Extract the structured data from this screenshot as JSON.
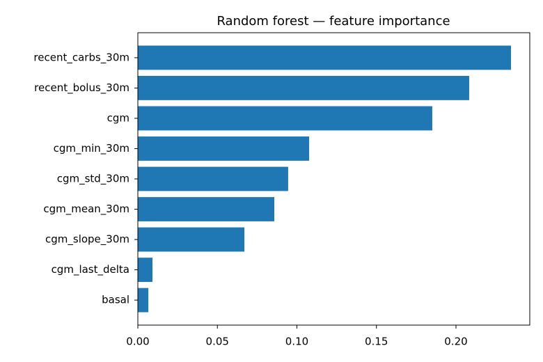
{
  "chart_data": {
    "type": "barh",
    "title": "Random forest — feature importance",
    "categories": [
      "recent_carbs_30m",
      "recent_bolus_30m",
      "cgm",
      "cgm_min_30m",
      "cgm_std_30m",
      "cgm_mean_30m",
      "cgm_slope_30m",
      "cgm_last_delta",
      "basal"
    ],
    "values": [
      0.2346,
      0.2083,
      0.1851,
      0.1077,
      0.0945,
      0.0858,
      0.067,
      0.0092,
      0.0066
    ],
    "color": "#1f77b4",
    "xlim": [
      0,
      0.2464
    ],
    "xticks": [
      {
        "value": 0,
        "label": "0.00"
      },
      {
        "value": 0.05,
        "label": "0.05"
      },
      {
        "value": 0.1,
        "label": "0.10"
      },
      {
        "value": 0.15,
        "label": "0.15"
      },
      {
        "value": 0.2,
        "label": "0.20"
      }
    ],
    "grid": false
  }
}
